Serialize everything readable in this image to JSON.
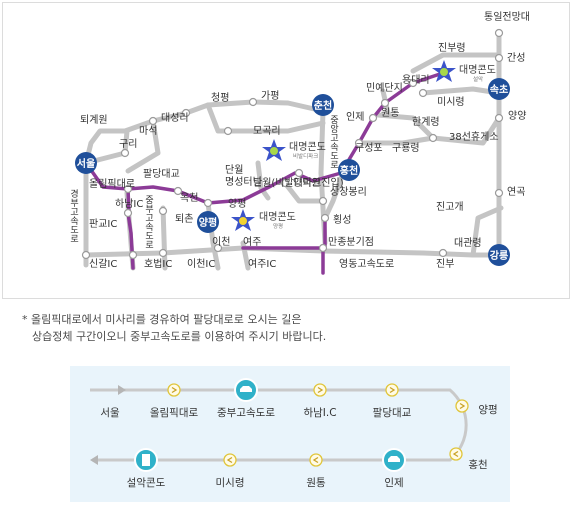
{
  "map": {
    "colors": {
      "road_gray": "#c4c4c4",
      "route_purple": "#8c3b97",
      "badge_blue": "#1f4f9a",
      "resort_star": "#3b53c9"
    },
    "city_badges": [
      {
        "name": "seoul",
        "text": "서울"
      },
      {
        "name": "chuncheon",
        "text": "춘천"
      },
      {
        "name": "hongcheon",
        "text": "홍천"
      },
      {
        "name": "sokcho",
        "text": "속초"
      },
      {
        "name": "yangpyeong",
        "text": "양평"
      },
      {
        "name": "gangneung",
        "text": "강릉"
      }
    ],
    "resorts": [
      {
        "name": "daemyung-seorak",
        "text": "대명콘도",
        "sub": "설악"
      },
      {
        "name": "daemyung-vivaldi",
        "text": "대명콘도",
        "sub": "비발디파크"
      },
      {
        "name": "daemyung-yangpyeong",
        "text": "대명콘도",
        "sub": "양평"
      }
    ],
    "place_labels": [
      "통일전망대",
      "진부령",
      "간성",
      "대명콘도",
      "민예단지",
      "용대리",
      "미시령",
      "원통",
      "양양",
      "인제",
      "한계령",
      "38선휴게소",
      "구성포",
      "구룡령",
      "퇴계원",
      "청평",
      "가평",
      "대성리",
      "마석",
      "구리",
      "모곡리",
      "팔당대교",
      "올림픽대로",
      "하남IC",
      "옥천",
      "단월\n명성터널",
      "양덕원",
      "상창봉리",
      "횡성",
      "양평",
      "퇴촌",
      "단월(비발디파크진입)",
      "진고개",
      "연곡",
      "판교IC",
      "신갈IC",
      "호법IC",
      "이천IC",
      "이천",
      "여주",
      "여주IC",
      "만종분기점",
      "대관령",
      "영동고속도로",
      "진부"
    ],
    "road_labels": {
      "gyeongbu": "경부고속도로",
      "jungbu": "중부고속도로",
      "jungang": "중앙고속도로"
    }
  },
  "notice": {
    "line1": "* 올림픽대로에서 미사리를 경유하여 팔당대로로 오시는 길은",
    "line2": "상습정체 구간이오니 중부고속도로를 이용하여 주시기 바랍니다."
  },
  "route": {
    "steps": [
      {
        "label": "서울",
        "kind": "start"
      },
      {
        "label": "올림픽대로",
        "kind": "arrow"
      },
      {
        "label": "중부고속도로",
        "kind": "car"
      },
      {
        "label": "하남I.C",
        "kind": "arrow"
      },
      {
        "label": "팔당대교",
        "kind": "arrow"
      },
      {
        "label": "양평",
        "kind": "arrow"
      },
      {
        "label": "홍천",
        "kind": "arrow"
      },
      {
        "label": "인제",
        "kind": "car"
      },
      {
        "label": "원통",
        "kind": "arrow"
      },
      {
        "label": "미시령",
        "kind": "arrow"
      },
      {
        "label": "설악콘도",
        "kind": "building"
      }
    ]
  }
}
